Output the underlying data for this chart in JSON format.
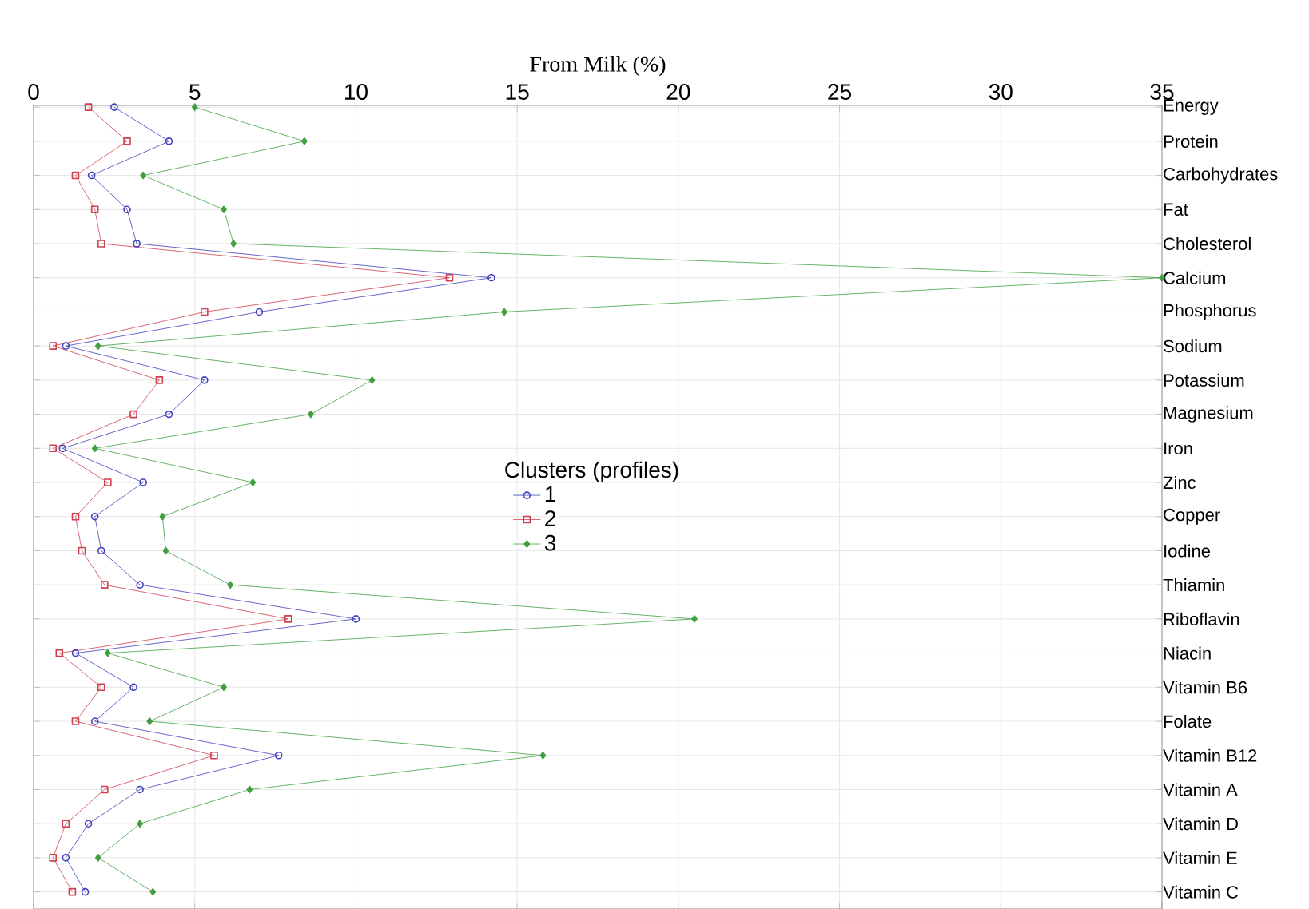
{
  "chart_data": {
    "type": "line",
    "orientation": "horizontal",
    "xlabel": "From Milk (%)",
    "legend_title": "Clusters (profiles)",
    "categories": [
      "Energy",
      "Protein",
      "Carbohydrates",
      "Fat",
      "Cholesterol",
      "Calcium",
      "Phosphorus",
      "Sodium",
      "Potassium",
      "Magnesium",
      "Iron",
      "Zinc",
      "Copper",
      "Iodine",
      "Thiamin",
      "Riboflavin",
      "Niacin",
      "Vitamin B6",
      "Folate",
      "Vitamin B12",
      "Vitamin A",
      "Vitamin D",
      "Vitamin E",
      "Vitamin C"
    ],
    "series": [
      {
        "name": "1",
        "color": "#4040c0",
        "marker": "circle",
        "values": [
          2.5,
          4.2,
          1.8,
          2.9,
          3.2,
          14.2,
          7.0,
          1.0,
          5.3,
          4.2,
          0.9,
          3.4,
          1.9,
          2.1,
          3.3,
          10.0,
          1.3,
          3.1,
          1.9,
          7.6,
          3.3,
          1.7,
          1.0,
          1.6
        ]
      },
      {
        "name": "2",
        "color": "#d04050",
        "marker": "square",
        "values": [
          1.7,
          2.9,
          1.3,
          1.9,
          2.1,
          12.9,
          5.3,
          0.6,
          3.9,
          3.1,
          0.6,
          2.3,
          1.3,
          1.5,
          2.2,
          7.9,
          0.8,
          2.1,
          1.3,
          5.6,
          2.2,
          1.0,
          0.6,
          1.2
        ]
      },
      {
        "name": "3",
        "color": "#40a040",
        "marker": "diamond",
        "values": [
          5.0,
          8.4,
          3.4,
          5.9,
          6.2,
          35.0,
          14.6,
          2.0,
          10.5,
          8.6,
          1.9,
          6.8,
          4.0,
          4.1,
          6.1,
          20.5,
          2.3,
          5.9,
          3.6,
          15.8,
          6.7,
          3.3,
          2.0,
          3.7
        ]
      }
    ],
    "xlim": [
      0,
      35
    ],
    "xticks": [
      0,
      5,
      10,
      15,
      20,
      25,
      30,
      35
    ],
    "grid": true,
    "legend": "center",
    "line_style": "solid"
  }
}
